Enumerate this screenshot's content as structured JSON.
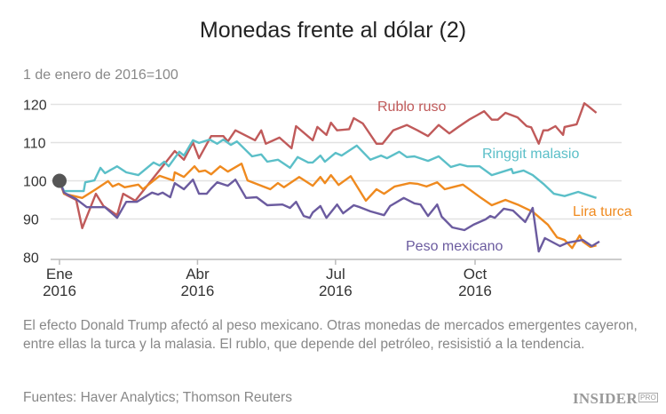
{
  "chart_data": {
    "type": "line",
    "title": "Monedas frente al dólar (2)",
    "subtitle": "1 de enero de 2016=100",
    "ylim": [
      80,
      120
    ],
    "yticks": [
      "80",
      "90",
      "100",
      "110",
      "120"
    ],
    "xticks": [
      {
        "date": "2016-01-01",
        "label1": "Ene",
        "label2": "2016"
      },
      {
        "date": "2016-04-01",
        "label1": "Abr",
        "label2": "2016"
      },
      {
        "date": "2016-07-01",
        "label1": "Jul",
        "label2": "2016"
      },
      {
        "date": "2016-10-01",
        "label1": "Oct",
        "label2": "2016"
      }
    ],
    "grid": true,
    "base_point": {
      "date": "2016-01-01",
      "value": 100
    },
    "series": [
      {
        "name": "Rublo ruso",
        "color": "#c05a5a",
        "points": [
          [
            "2016-01-01",
            100
          ],
          [
            "2016-01-04",
            96.6
          ],
          [
            "2016-01-12",
            95.0
          ],
          [
            "2016-01-16",
            87.6
          ],
          [
            "2016-01-25",
            96.6
          ],
          [
            "2016-01-30",
            93.4
          ],
          [
            "2016-02-08",
            91.0
          ],
          [
            "2016-02-12",
            96.6
          ],
          [
            "2016-02-20",
            94.8
          ],
          [
            "2016-03-17",
            107.8
          ],
          [
            "2016-03-23",
            105.5
          ],
          [
            "2016-03-29",
            110
          ],
          [
            "2016-04-02",
            105.9
          ],
          [
            "2016-04-10",
            111.7
          ],
          [
            "2016-04-18",
            111.7
          ],
          [
            "2016-04-21",
            110.3
          ],
          [
            "2016-04-26",
            113.2
          ],
          [
            "2016-05-09",
            110.6
          ],
          [
            "2016-05-13",
            113.2
          ],
          [
            "2016-05-16",
            109.7
          ],
          [
            "2016-05-25",
            111.3
          ],
          [
            "2016-06-02",
            108.5
          ],
          [
            "2016-06-05",
            114.3
          ],
          [
            "2016-06-16",
            110.6
          ],
          [
            "2016-06-19",
            114.1
          ],
          [
            "2016-06-25",
            112
          ],
          [
            "2016-06-28",
            115.2
          ],
          [
            "2016-07-02",
            113.2
          ],
          [
            "2016-07-10",
            113.5
          ],
          [
            "2016-07-13",
            116.4
          ],
          [
            "2016-07-19",
            115
          ],
          [
            "2016-07-28",
            109.7
          ],
          [
            "2016-08-01",
            109.7
          ],
          [
            "2016-08-08",
            113.2
          ],
          [
            "2016-08-17",
            114.6
          ],
          [
            "2016-08-24",
            113.2
          ],
          [
            "2016-08-31",
            111.7
          ],
          [
            "2016-09-07",
            114.6
          ],
          [
            "2016-09-14",
            112.4
          ],
          [
            "2016-09-20",
            114.1
          ],
          [
            "2016-09-27",
            116
          ],
          [
            "2016-10-02",
            117.1
          ],
          [
            "2016-10-07",
            118.2
          ],
          [
            "2016-10-12",
            116
          ],
          [
            "2016-10-16",
            116
          ],
          [
            "2016-10-21",
            117.8
          ],
          [
            "2016-10-29",
            116.6
          ],
          [
            "2016-11-04",
            114.3
          ],
          [
            "2016-11-07",
            114
          ],
          [
            "2016-11-12",
            109.7
          ],
          [
            "2016-11-15",
            113.2
          ],
          [
            "2016-11-18",
            113.2
          ],
          [
            "2016-11-23",
            114.3
          ],
          [
            "2016-11-28",
            112
          ],
          [
            "2016-11-29",
            114.1
          ],
          [
            "2016-12-07",
            114.8
          ],
          [
            "2016-12-12",
            120.3
          ],
          [
            "2016-12-15",
            119.4
          ],
          [
            "2016-12-20",
            117.8
          ]
        ]
      },
      {
        "name": "Ringgit malasio",
        "color": "#5bbfc8",
        "points": [
          [
            "2016-01-01",
            100
          ],
          [
            "2016-01-04",
            97.3
          ],
          [
            "2016-01-17",
            97.3
          ],
          [
            "2016-01-18",
            99.6
          ],
          [
            "2016-01-24",
            100.1
          ],
          [
            "2016-01-28",
            103.4
          ],
          [
            "2016-01-31",
            102
          ],
          [
            "2016-02-08",
            103.8
          ],
          [
            "2016-02-14",
            102.2
          ],
          [
            "2016-02-22",
            101.5
          ],
          [
            "2016-03-03",
            104.8
          ],
          [
            "2016-03-07",
            104
          ],
          [
            "2016-03-10",
            105
          ],
          [
            "2016-03-13",
            103.8
          ],
          [
            "2016-03-20",
            107.6
          ],
          [
            "2016-03-23",
            106.6
          ],
          [
            "2016-03-29",
            110.6
          ],
          [
            "2016-04-02",
            109.9
          ],
          [
            "2016-04-09",
            110.8
          ],
          [
            "2016-04-14",
            109.7
          ],
          [
            "2016-04-18",
            110.8
          ],
          [
            "2016-04-23",
            109.4
          ],
          [
            "2016-04-27",
            110.3
          ],
          [
            "2016-05-07",
            106.4
          ],
          [
            "2016-05-13",
            106.9
          ],
          [
            "2016-05-17",
            105
          ],
          [
            "2016-05-24",
            105.5
          ],
          [
            "2016-06-01",
            103.4
          ],
          [
            "2016-06-06",
            106.2
          ],
          [
            "2016-06-13",
            104.8
          ],
          [
            "2016-06-16",
            104.8
          ],
          [
            "2016-06-21",
            106.6
          ],
          [
            "2016-06-24",
            105
          ],
          [
            "2016-07-01",
            107.3
          ],
          [
            "2016-07-05",
            106.6
          ],
          [
            "2016-07-15",
            109.2
          ],
          [
            "2016-07-24",
            105.5
          ],
          [
            "2016-07-31",
            106.6
          ],
          [
            "2016-08-04",
            105.9
          ],
          [
            "2016-08-12",
            107.6
          ],
          [
            "2016-08-17",
            106.2
          ],
          [
            "2016-08-22",
            106.4
          ],
          [
            "2016-08-31",
            105.2
          ],
          [
            "2016-09-07",
            106.4
          ],
          [
            "2016-09-15",
            103.6
          ],
          [
            "2016-09-21",
            104.3
          ],
          [
            "2016-09-26",
            103.8
          ],
          [
            "2016-10-04",
            103.8
          ],
          [
            "2016-10-12",
            101.5
          ],
          [
            "2016-10-25",
            103.1
          ],
          [
            "2016-10-26",
            102
          ],
          [
            "2016-11-02",
            102.7
          ],
          [
            "2016-11-08",
            101.5
          ],
          [
            "2016-11-15",
            99.2
          ],
          [
            "2016-11-22",
            96.6
          ],
          [
            "2016-11-29",
            96
          ],
          [
            "2016-12-08",
            97.1
          ],
          [
            "2016-12-20",
            95.5
          ]
        ]
      },
      {
        "name": "Lira turca",
        "color": "#ef8a1f",
        "points": [
          [
            "2016-01-01",
            100
          ],
          [
            "2016-01-04",
            96.6
          ],
          [
            "2016-01-16",
            95.5
          ],
          [
            "2016-01-25",
            97.8
          ],
          [
            "2016-02-02",
            99.9
          ],
          [
            "2016-02-05",
            98.5
          ],
          [
            "2016-02-09",
            99.2
          ],
          [
            "2016-02-13",
            98.3
          ],
          [
            "2016-02-22",
            99
          ],
          [
            "2016-02-25",
            97.8
          ],
          [
            "2016-03-07",
            101.3
          ],
          [
            "2016-03-16",
            100.1
          ],
          [
            "2016-03-17",
            102.2
          ],
          [
            "2016-03-23",
            101
          ],
          [
            "2016-03-30",
            103.8
          ],
          [
            "2016-04-02",
            102.4
          ],
          [
            "2016-04-06",
            102.7
          ],
          [
            "2016-04-10",
            101.7
          ],
          [
            "2016-04-16",
            103.8
          ],
          [
            "2016-04-21",
            102.4
          ],
          [
            "2016-04-30",
            104.5
          ],
          [
            "2016-05-04",
            100.1
          ],
          [
            "2016-05-19",
            97.8
          ],
          [
            "2016-05-24",
            99.4
          ],
          [
            "2016-05-28",
            98.3
          ],
          [
            "2016-06-07",
            101
          ],
          [
            "2016-06-16",
            98.7
          ],
          [
            "2016-06-21",
            101
          ],
          [
            "2016-06-24",
            99.4
          ],
          [
            "2016-06-28",
            101.5
          ],
          [
            "2016-07-03",
            98.9
          ],
          [
            "2016-07-11",
            101.2
          ],
          [
            "2016-07-21",
            94.8
          ],
          [
            "2016-07-28",
            97.8
          ],
          [
            "2016-08-02",
            96.6
          ],
          [
            "2016-08-09",
            98.5
          ],
          [
            "2016-08-19",
            99.4
          ],
          [
            "2016-08-24",
            99.2
          ],
          [
            "2016-08-30",
            98.5
          ],
          [
            "2016-09-06",
            99.6
          ],
          [
            "2016-09-11",
            97.8
          ],
          [
            "2016-09-23",
            99
          ],
          [
            "2016-10-05",
            95.5
          ],
          [
            "2016-10-12",
            93.6
          ],
          [
            "2016-10-21",
            95
          ],
          [
            "2016-10-29",
            93.8
          ],
          [
            "2016-11-08",
            91.9
          ],
          [
            "2016-11-18",
            88.5
          ],
          [
            "2016-11-24",
            85.2
          ],
          [
            "2016-11-29",
            84.5
          ],
          [
            "2016-12-04",
            82.4
          ],
          [
            "2016-12-09",
            85.7
          ],
          [
            "2016-12-11",
            84.1
          ],
          [
            "2016-12-16",
            82.7
          ],
          [
            "2016-12-20",
            83.1
          ]
        ]
      },
      {
        "name": "Peso mexicano",
        "color": "#6b5b9f",
        "points": [
          [
            "2016-01-01",
            100
          ],
          [
            "2016-01-04",
            96.9
          ],
          [
            "2016-01-12",
            95.2
          ],
          [
            "2016-01-19",
            93.1
          ],
          [
            "2016-01-31",
            93.1
          ],
          [
            "2016-02-08",
            90.3
          ],
          [
            "2016-02-14",
            94.5
          ],
          [
            "2016-02-21",
            94.5
          ],
          [
            "2016-03-02",
            96.9
          ],
          [
            "2016-03-06",
            96.4
          ],
          [
            "2016-03-09",
            96.9
          ],
          [
            "2016-03-14",
            95.7
          ],
          [
            "2016-03-17",
            99.4
          ],
          [
            "2016-03-23",
            97.8
          ],
          [
            "2016-03-29",
            100.3
          ],
          [
            "2016-04-02",
            96.6
          ],
          [
            "2016-04-07",
            96.6
          ],
          [
            "2016-04-10",
            98
          ],
          [
            "2016-04-14",
            99.6
          ],
          [
            "2016-04-21",
            98.7
          ],
          [
            "2016-04-26",
            100.3
          ],
          [
            "2016-05-03",
            95.5
          ],
          [
            "2016-05-10",
            95.7
          ],
          [
            "2016-05-17",
            93.6
          ],
          [
            "2016-05-27",
            93.8
          ],
          [
            "2016-06-01",
            92.9
          ],
          [
            "2016-06-05",
            94.5
          ],
          [
            "2016-06-10",
            90.8
          ],
          [
            "2016-06-14",
            90.3
          ],
          [
            "2016-06-16",
            91.7
          ],
          [
            "2016-06-21",
            93.4
          ],
          [
            "2016-06-25",
            90.3
          ],
          [
            "2016-07-02",
            93.8
          ],
          [
            "2016-07-06",
            91.5
          ],
          [
            "2016-07-13",
            93.6
          ],
          [
            "2016-07-17",
            93.1
          ],
          [
            "2016-07-24",
            92
          ],
          [
            "2016-08-02",
            91
          ],
          [
            "2016-08-06",
            93.4
          ],
          [
            "2016-08-15",
            95.5
          ],
          [
            "2016-08-22",
            94.1
          ],
          [
            "2016-08-26",
            93.8
          ],
          [
            "2016-08-31",
            90.8
          ],
          [
            "2016-09-06",
            93.8
          ],
          [
            "2016-09-09",
            90.6
          ],
          [
            "2016-09-16",
            87.8
          ],
          [
            "2016-09-24",
            87.1
          ],
          [
            "2016-09-30",
            88.5
          ],
          [
            "2016-10-08",
            89.9
          ],
          [
            "2016-10-11",
            90.8
          ],
          [
            "2016-10-14",
            90.3
          ],
          [
            "2016-10-20",
            92.7
          ],
          [
            "2016-10-26",
            92.2
          ],
          [
            "2016-11-03",
            89.2
          ],
          [
            "2016-11-08",
            92.9
          ],
          [
            "2016-11-12",
            81.5
          ],
          [
            "2016-11-16",
            85
          ],
          [
            "2016-11-26",
            82.9
          ],
          [
            "2016-12-01",
            83.8
          ],
          [
            "2016-12-11",
            84.5
          ],
          [
            "2016-12-17",
            82.9
          ],
          [
            "2016-12-22",
            84.1
          ]
        ]
      }
    ]
  },
  "caption": "El efecto Donald Trump afectó al peso mexicano. Otras monedas de mercados emergentes cayeron, entre ellas la turca y la malasia. El rublo, que depende del petróleo, resisistió a la tendencia.",
  "source": "Fuentes: Haver Analytics; Thomson Reuters",
  "logo": {
    "text": "INSIDER",
    "badge": "PRO"
  }
}
